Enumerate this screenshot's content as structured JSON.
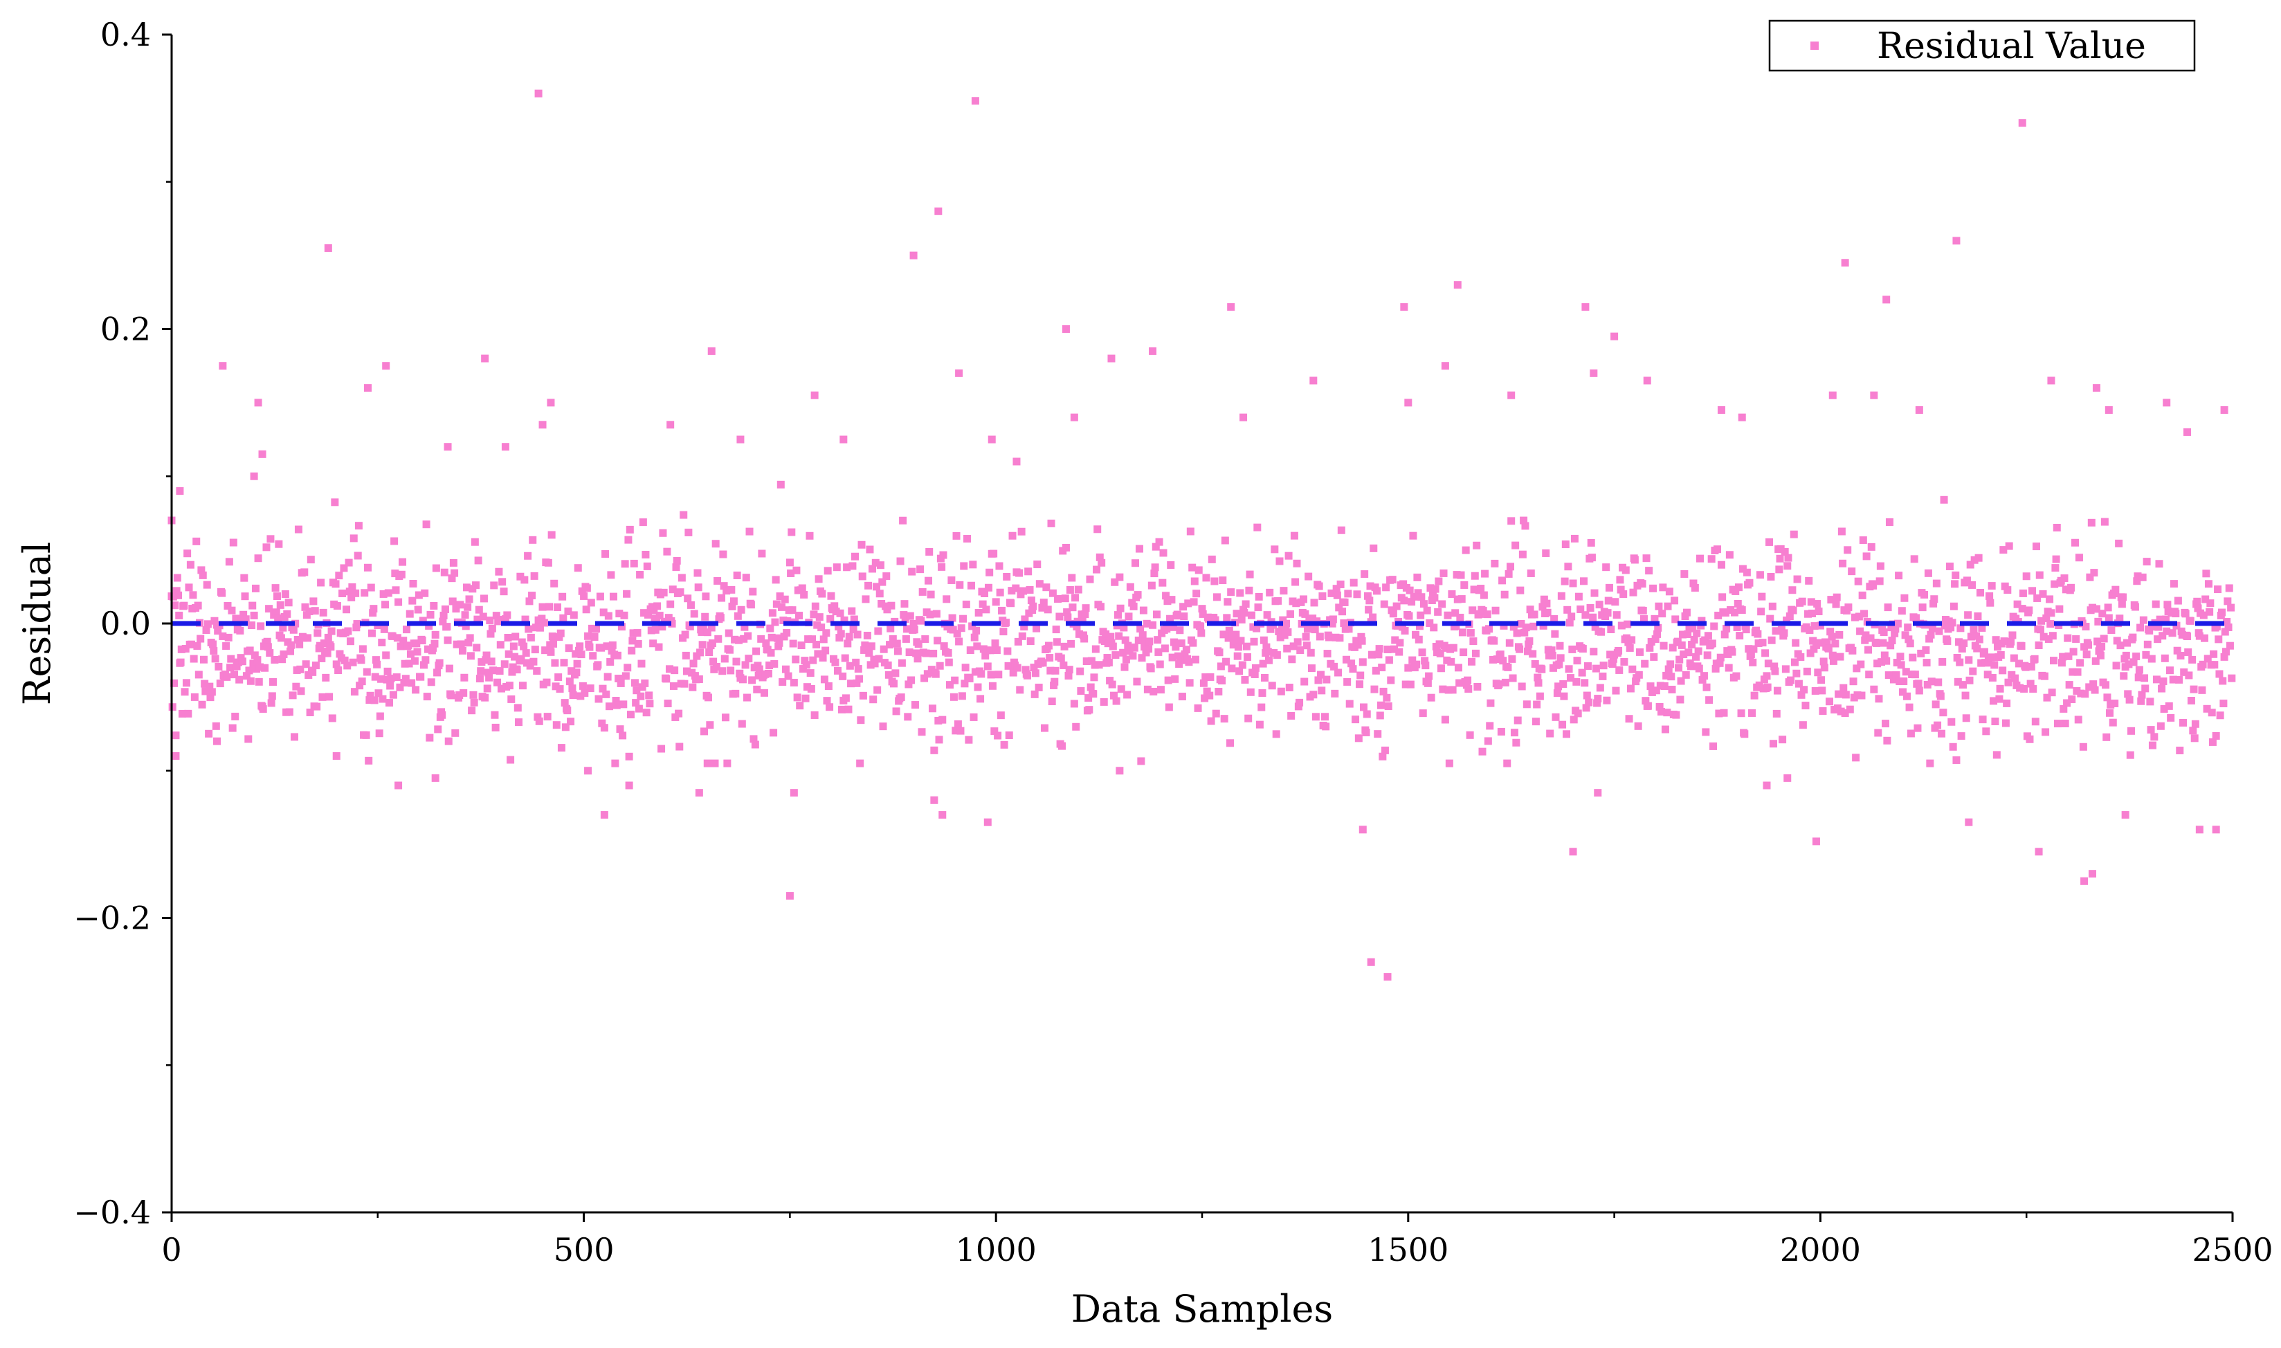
{
  "chart_data": {
    "type": "scatter",
    "title": "",
    "xlabel": "Data Samples",
    "ylabel": "Residual",
    "xlim": [
      0,
      2500
    ],
    "ylim": [
      -0.4,
      0.4
    ],
    "xticks": [
      0,
      500,
      1000,
      1500,
      2000,
      2500
    ],
    "xtick_labels": [
      "0",
      "500",
      "1000",
      "1500",
      "2000",
      "2500"
    ],
    "yticks": [
      -0.4,
      -0.2,
      0.0,
      0.2,
      0.4
    ],
    "ytick_labels": [
      "−0.4",
      "−0.2",
      "0.0",
      "0.2",
      "0.4"
    ],
    "grid": false,
    "legend_position": "top-right",
    "series": [
      {
        "name": "Residual Value",
        "color": "#f77fd0",
        "marker": "square",
        "n_points": 2500,
        "typical_spread": [
          -0.06,
          0.06
        ],
        "points": [
          [
            0,
            0.07
          ],
          [
            5,
            -0.09
          ],
          [
            10,
            0.09
          ],
          [
            55,
            -0.08
          ],
          [
            62,
            0.175
          ],
          [
            100,
            0.1
          ],
          [
            105,
            0.15
          ],
          [
            110,
            0.115
          ],
          [
            190,
            0.255
          ],
          [
            200,
            -0.09
          ],
          [
            238,
            0.16
          ],
          [
            260,
            0.175
          ],
          [
            275,
            -0.11
          ],
          [
            320,
            -0.105
          ],
          [
            335,
            0.12
          ],
          [
            380,
            0.18
          ],
          [
            405,
            0.12
          ],
          [
            445,
            0.36
          ],
          [
            450,
            0.135
          ],
          [
            460,
            0.15
          ],
          [
            505,
            -0.1
          ],
          [
            525,
            -0.13
          ],
          [
            555,
            -0.11
          ],
          [
            605,
            0.135
          ],
          [
            640,
            -0.115
          ],
          [
            650,
            -0.095
          ],
          [
            655,
            0.185
          ],
          [
            690,
            0.125
          ],
          [
            750,
            -0.185
          ],
          [
            755,
            -0.115
          ],
          [
            780,
            0.155
          ],
          [
            815,
            0.125
          ],
          [
            900,
            0.25
          ],
          [
            925,
            -0.12
          ],
          [
            930,
            0.28
          ],
          [
            935,
            -0.13
          ],
          [
            955,
            0.17
          ],
          [
            975,
            0.355
          ],
          [
            990,
            -0.135
          ],
          [
            995,
            0.125
          ],
          [
            1025,
            0.11
          ],
          [
            1085,
            0.2
          ],
          [
            1095,
            0.14
          ],
          [
            1140,
            0.18
          ],
          [
            1150,
            -0.1
          ],
          [
            1190,
            0.185
          ],
          [
            1285,
            0.215
          ],
          [
            1300,
            0.14
          ],
          [
            1385,
            0.165
          ],
          [
            1445,
            -0.14
          ],
          [
            1455,
            -0.23
          ],
          [
            1475,
            -0.24
          ],
          [
            1495,
            0.215
          ],
          [
            1500,
            0.15
          ],
          [
            1545,
            0.175
          ],
          [
            1560,
            0.23
          ],
          [
            1625,
            0.155
          ],
          [
            1700,
            -0.155
          ],
          [
            1715,
            0.215
          ],
          [
            1725,
            0.17
          ],
          [
            1730,
            -0.115
          ],
          [
            1750,
            0.195
          ],
          [
            1790,
            0.165
          ],
          [
            1880,
            0.145
          ],
          [
            1905,
            0.14
          ],
          [
            1935,
            -0.11
          ],
          [
            1960,
            -0.105
          ],
          [
            1995,
            -0.148
          ],
          [
            2015,
            0.155
          ],
          [
            2030,
            0.245
          ],
          [
            2065,
            0.155
          ],
          [
            2080,
            0.22
          ],
          [
            2120,
            0.145
          ],
          [
            2165,
            0.26
          ],
          [
            2180,
            -0.135
          ],
          [
            2245,
            0.34
          ],
          [
            2265,
            -0.155
          ],
          [
            2280,
            0.165
          ],
          [
            2320,
            -0.175
          ],
          [
            2330,
            -0.17
          ],
          [
            2335,
            0.16
          ],
          [
            2350,
            0.145
          ],
          [
            2370,
            -0.13
          ],
          [
            2420,
            0.15
          ],
          [
            2445,
            0.13
          ],
          [
            2460,
            -0.14
          ],
          [
            2480,
            -0.14
          ],
          [
            2490,
            0.145
          ]
        ]
      },
      {
        "name": "",
        "type": "line",
        "style": "dashed",
        "color": "#1a1ae6",
        "y": 0.0
      }
    ]
  }
}
